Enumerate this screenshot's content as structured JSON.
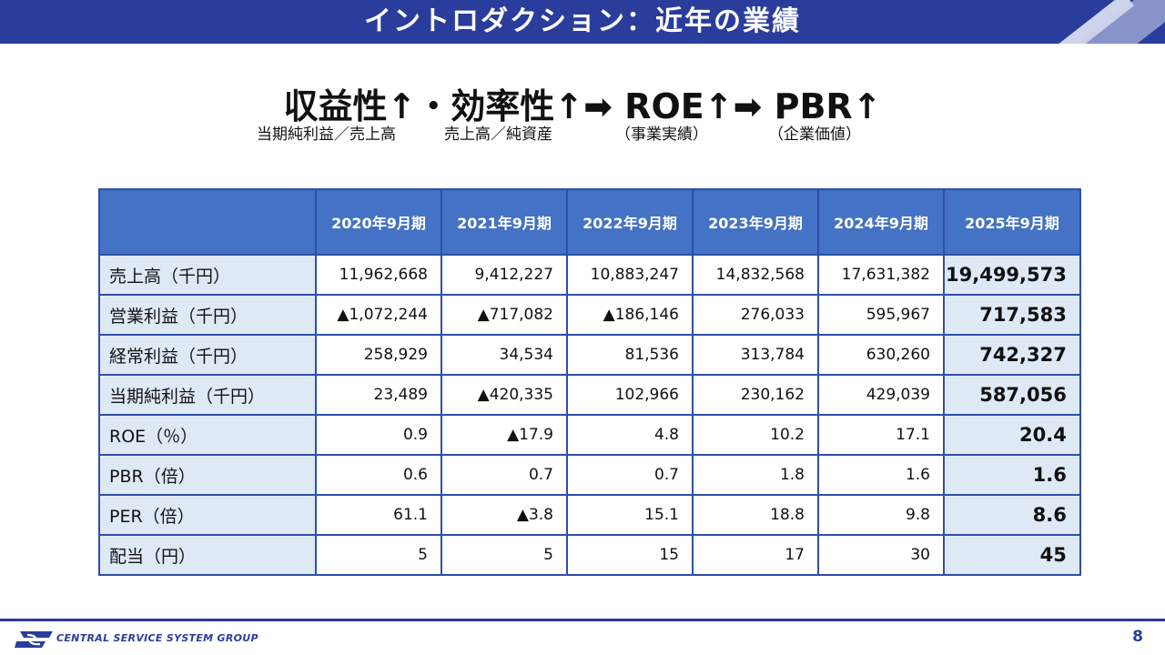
{
  "header": {
    "title": "イントロダクション：近年の業績"
  },
  "formula": {
    "main": "収益性↑・効率性↑➡ ROE↑➡ PBR↑",
    "sub1": "当期純利益／売上高",
    "sub2": "売上高／純資産",
    "sub3": "（事業実績）",
    "sub4": "（企業価値）"
  },
  "table": {
    "columns": [
      "",
      "2020年9月期",
      "2021年9月期",
      "2022年9月期",
      "2023年9月期",
      "2024年9月期",
      "2025年9月期"
    ],
    "rows": [
      {
        "label": "売上高（千円）",
        "values": [
          "11,962,668",
          "9,412,227",
          "10,883,247",
          "14,832,568",
          "17,631,382",
          "19,499,573"
        ]
      },
      {
        "label": "営業利益（千円）",
        "values": [
          "▲1,072,244",
          "▲717,082",
          "▲186,146",
          "276,033",
          "595,967",
          "717,583"
        ]
      },
      {
        "label": "経常利益（千円）",
        "values": [
          "258,929",
          "34,534",
          "81,536",
          "313,784",
          "630,260",
          "742,327"
        ]
      },
      {
        "label": "当期純利益（千円）",
        "values": [
          "23,489",
          "▲420,335",
          "102,966",
          "230,162",
          "429,039",
          "587,056"
        ]
      },
      {
        "label": "ROE（％）",
        "values": [
          "0.9",
          "▲17.9",
          "4.8",
          "10.2",
          "17.1",
          "20.4"
        ]
      },
      {
        "label": "PBR（倍）",
        "values": [
          "0.6",
          "0.7",
          "0.7",
          "1.8",
          "1.6",
          "1.6"
        ]
      },
      {
        "label": "PER（倍）",
        "values": [
          "61.1",
          "▲3.8",
          "15.1",
          "18.8",
          "9.8",
          "8.6"
        ]
      },
      {
        "label": "配当（円）",
        "values": [
          "5",
          "5",
          "15",
          "17",
          "30",
          "45"
        ]
      }
    ]
  },
  "footer": {
    "company": "CENTRAL SERVICE SYSTEM GROUP",
    "page": "8"
  },
  "colors": {
    "brand": "#2a3d9c",
    "header_cell": "#4472c4",
    "label_cell": "#dfe9f6",
    "border": "#2e4fa8"
  }
}
